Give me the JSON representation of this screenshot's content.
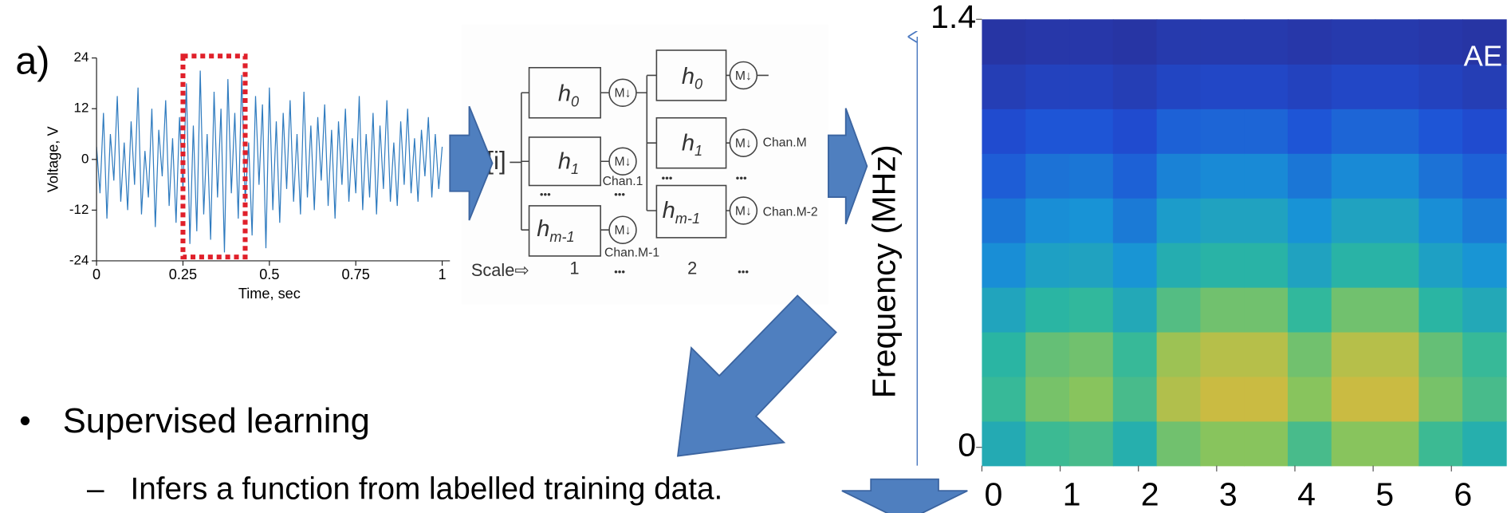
{
  "panel_label": "a)",
  "chart_data": [
    {
      "type": "line",
      "x_label": "Time, sec",
      "y_label": "Voltage, V",
      "color": "#2f7bbf",
      "x": [
        0,
        0.01,
        0.02,
        0.03,
        0.04,
        0.05,
        0.06,
        0.07,
        0.08,
        0.09,
        0.1,
        0.11,
        0.12,
        0.13,
        0.14,
        0.15,
        0.16,
        0.17,
        0.18,
        0.19,
        0.2,
        0.21,
        0.22,
        0.23,
        0.24,
        0.25,
        0.26,
        0.27,
        0.28,
        0.29,
        0.3,
        0.31,
        0.32,
        0.33,
        0.34,
        0.35,
        0.36,
        0.37,
        0.38,
        0.39,
        0.4,
        0.41,
        0.42,
        0.43,
        0.44,
        0.45,
        0.46,
        0.47,
        0.48,
        0.49,
        0.5,
        0.51,
        0.52,
        0.53,
        0.54,
        0.55,
        0.56,
        0.57,
        0.58,
        0.59,
        0.6,
        0.61,
        0.62,
        0.63,
        0.64,
        0.65,
        0.66,
        0.67,
        0.68,
        0.69,
        0.7,
        0.71,
        0.72,
        0.73,
        0.74,
        0.75,
        0.76,
        0.77,
        0.78,
        0.79,
        0.8,
        0.81,
        0.82,
        0.83,
        0.84,
        0.85,
        0.86,
        0.87,
        0.88,
        0.89,
        0.9,
        0.91,
        0.92,
        0.93,
        0.94,
        0.95,
        0.96,
        0.97,
        0.98,
        0.99,
        1
      ],
      "values": [
        3,
        -8,
        11,
        -14,
        6,
        -5,
        15,
        -10,
        4,
        -12,
        9,
        -6,
        17,
        -13,
        2,
        -9,
        12,
        -16,
        7,
        -4,
        14,
        -11,
        5,
        -15,
        10,
        -7,
        18,
        -20,
        8,
        -17,
        21,
        -13,
        6,
        -19,
        16,
        -9,
        12,
        -22,
        19,
        -8,
        11,
        -14,
        20,
        -10,
        4,
        -18,
        15,
        -6,
        13,
        -21,
        17,
        -12,
        9,
        -15,
        11,
        -7,
        14,
        -10,
        6,
        -13,
        16,
        -9,
        8,
        -12,
        10,
        -5,
        13,
        -11,
        7,
        -14,
        9,
        -6,
        12,
        -10,
        5,
        -8,
        15,
        -12,
        6,
        -9,
        11,
        -13,
        8,
        -7,
        14,
        -10,
        4,
        -11,
        9,
        -6,
        12,
        -8,
        5,
        -10,
        7,
        -4,
        10,
        -9,
        6,
        -7,
        3
      ],
      "highlight": [
        0.25,
        0.43
      ],
      "highlight_color": "#e0202a",
      "xlim": [
        0,
        1
      ],
      "xticks": [
        0,
        0.25,
        0.5,
        0.75,
        1
      ],
      "ylim": [
        -24,
        24
      ],
      "yticks": [
        -24,
        -12,
        0,
        12,
        24
      ]
    },
    {
      "type": "heatmap",
      "y_label": "Frequency (MHz)",
      "annotation": "AE",
      "xlim": [
        0,
        6.7
      ],
      "xticks": [
        0,
        1,
        2,
        3,
        4,
        5,
        6
      ],
      "ylim": [
        -0.06,
        1.4
      ],
      "yticks": [
        0,
        1.4
      ],
      "zlim": [
        0,
        1
      ],
      "colorscale": [
        "#2b2a8f",
        "#1f4fd6",
        "#1894d6",
        "#2bb7a0",
        "#8cc55a",
        "#e0b83a",
        "#f9e01e"
      ],
      "z": [
        [
          0.44,
          0.53,
          0.55,
          0.46,
          0.62,
          0.66,
          0.66,
          0.55,
          0.66,
          0.66,
          0.53,
          0.46
        ],
        [
          0.52,
          0.63,
          0.66,
          0.55,
          0.74,
          0.79,
          0.79,
          0.66,
          0.79,
          0.79,
          0.63,
          0.55
        ],
        [
          0.49,
          0.6,
          0.62,
          0.52,
          0.7,
          0.75,
          0.75,
          0.62,
          0.75,
          0.75,
          0.6,
          0.52
        ],
        [
          0.41,
          0.49,
          0.51,
          0.43,
          0.57,
          0.62,
          0.62,
          0.51,
          0.62,
          0.62,
          0.49,
          0.43
        ],
        [
          0.32,
          0.39,
          0.4,
          0.34,
          0.45,
          0.48,
          0.48,
          0.4,
          0.48,
          0.48,
          0.39,
          0.34
        ],
        [
          0.26,
          0.32,
          0.33,
          0.27,
          0.37,
          0.4,
          0.4,
          0.33,
          0.4,
          0.4,
          0.32,
          0.27
        ],
        [
          0.2,
          0.25,
          0.26,
          0.21,
          0.29,
          0.31,
          0.31,
          0.26,
          0.31,
          0.31,
          0.25,
          0.21
        ],
        [
          0.15,
          0.18,
          0.18,
          0.15,
          0.21,
          0.22,
          0.22,
          0.18,
          0.22,
          0.22,
          0.18,
          0.15
        ],
        [
          0.09,
          0.11,
          0.11,
          0.09,
          0.12,
          0.13,
          0.13,
          0.11,
          0.13,
          0.13,
          0.11,
          0.09
        ],
        [
          0.05,
          0.06,
          0.06,
          0.05,
          0.07,
          0.07,
          0.07,
          0.06,
          0.07,
          0.07,
          0.06,
          0.05
        ]
      ]
    }
  ],
  "diagram": {
    "input": "[i]",
    "filters": [
      {
        "label": "h",
        "sub": "0"
      },
      {
        "label": "h",
        "sub": "1"
      },
      {
        "label": "h",
        "sub": "m-1"
      }
    ],
    "decimator": "M↓",
    "channels": [
      "Chan.1",
      "Chan.M",
      "Chan.M-1",
      "Chan.M-2"
    ],
    "scale_label": "Scale⇨",
    "scales": [
      "1",
      "2"
    ],
    "ellipsis": "•••"
  },
  "bullets": [
    {
      "text": "Supervised learning",
      "sub": [
        "Infers a function from labelled training data."
      ]
    }
  ]
}
